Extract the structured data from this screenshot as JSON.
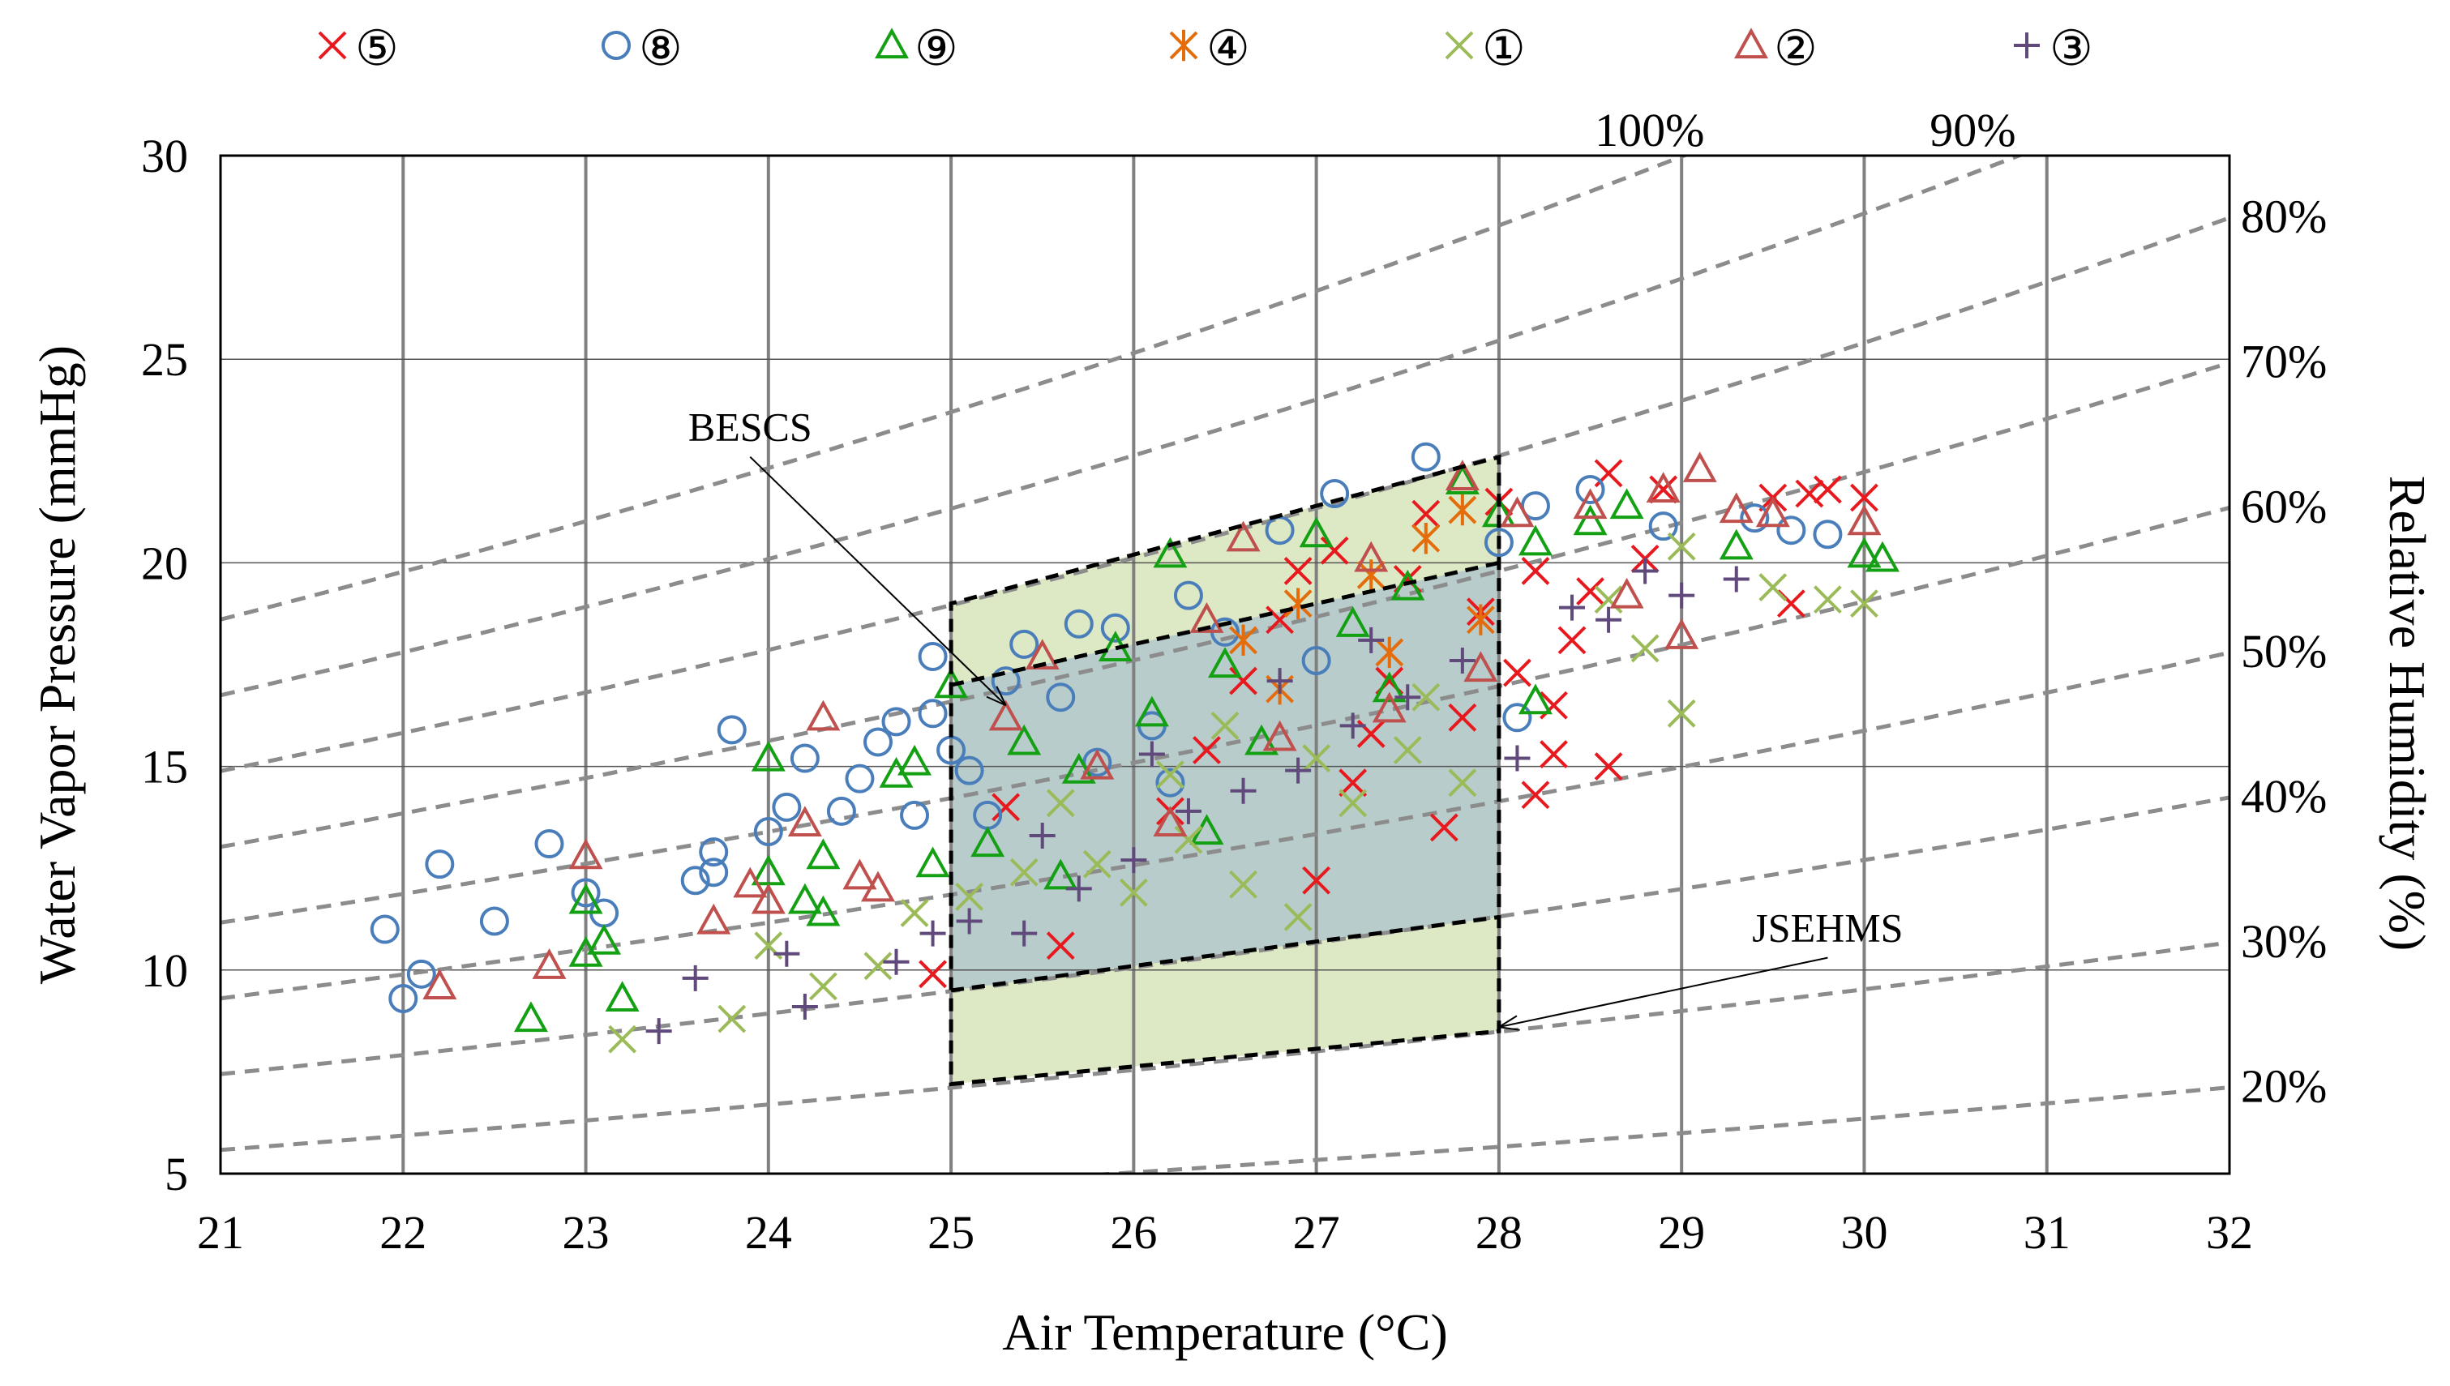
{
  "chart_data": {
    "type": "scatter",
    "xlabel": "Air Temperature (°C)",
    "ylabel": "Water Vapor Pressure (mmHg)",
    "y2label": "Relative Humidity (%)",
    "xlim": [
      21,
      32
    ],
    "ylim": [
      5,
      30
    ],
    "x_ticks": [
      "21",
      "22",
      "23",
      "24",
      "25",
      "26",
      "27",
      "28",
      "29",
      "30",
      "31",
      "32"
    ],
    "y_ticks": [
      "5",
      "10",
      "15",
      "20",
      "25",
      "30"
    ],
    "grid": "major vertical every 1 °C; horizontal lines at 10, 15, 20, 25",
    "legend_position": "top",
    "colors": {
      "axis": "#000000",
      "grid": "#808080",
      "rh_curve": "#8c8c8c",
      "zone_fill": "#dde8c4",
      "overlap_fill": "#b7cccb"
    },
    "rh_curves": [
      {
        "label": "20%",
        "rh": 20
      },
      {
        "label": "30%",
        "rh": 30
      },
      {
        "label": "40%",
        "rh": 40
      },
      {
        "label": "50%",
        "rh": 50
      },
      {
        "label": "60%",
        "rh": 60
      },
      {
        "label": "70%",
        "rh": 70
      },
      {
        "label": "80%",
        "rh": 80
      },
      {
        "label": "90%",
        "rh": 90
      },
      {
        "label": "100%",
        "rh": 100
      }
    ],
    "comfort_zones": [
      {
        "name": "BESCS",
        "corners": [
          [
            25,
            9.5
          ],
          [
            28,
            11.3
          ],
          [
            28,
            20.0
          ],
          [
            25,
            17.0
          ]
        ]
      },
      {
        "name": "JSEHMS",
        "corners": [
          [
            25,
            7.2
          ],
          [
            28,
            8.5
          ],
          [
            28,
            22.6
          ],
          [
            25,
            19.0
          ]
        ]
      }
    ],
    "annotations": [
      {
        "text": "BESCS",
        "x": 23.9,
        "y": 23.0,
        "arrow_to": [
          25.3,
          16.5
        ]
      },
      {
        "text": "JSEHMS",
        "x": 29.8,
        "y": 10.7,
        "arrow_to": [
          28.0,
          8.6
        ]
      }
    ],
    "series": [
      {
        "name": "⑤",
        "marker": "x",
        "color": "#e8191e",
        "points": [
          [
            24.9,
            9.9
          ],
          [
            25.3,
            14.0
          ],
          [
            25.6,
            10.6
          ],
          [
            26.4,
            15.4
          ],
          [
            26.8,
            18.6
          ],
          [
            26.9,
            19.8
          ],
          [
            27.0,
            12.2
          ],
          [
            27.1,
            20.3
          ],
          [
            27.2,
            14.6
          ],
          [
            27.4,
            17.1
          ],
          [
            27.5,
            19.6
          ],
          [
            27.6,
            21.2
          ],
          [
            27.7,
            13.5
          ],
          [
            27.8,
            16.2
          ],
          [
            27.9,
            18.8
          ],
          [
            28.0,
            21.5
          ],
          [
            28.1,
            17.3
          ],
          [
            28.2,
            14.3
          ],
          [
            28.2,
            19.8
          ],
          [
            28.3,
            15.3
          ],
          [
            28.4,
            18.1
          ],
          [
            28.5,
            19.3
          ],
          [
            28.6,
            22.2
          ],
          [
            28.6,
            15.0
          ],
          [
            28.8,
            20.1
          ],
          [
            28.9,
            21.8
          ],
          [
            29.5,
            21.6
          ],
          [
            29.6,
            19.0
          ],
          [
            29.7,
            21.7
          ],
          [
            29.8,
            21.8
          ],
          [
            30.0,
            21.6
          ],
          [
            28.3,
            16.5
          ],
          [
            27.3,
            15.8
          ],
          [
            26.6,
            17.1
          ],
          [
            26.2,
            13.9
          ]
        ]
      },
      {
        "name": "⑧",
        "marker": "circle",
        "color": "#4a7ebb",
        "points": [
          [
            21.9,
            11.0
          ],
          [
            22.0,
            9.3
          ],
          [
            22.1,
            9.9
          ],
          [
            22.2,
            12.6
          ],
          [
            22.5,
            11.2
          ],
          [
            22.8,
            13.1
          ],
          [
            23.0,
            11.9
          ],
          [
            23.1,
            11.4
          ],
          [
            23.6,
            12.2
          ],
          [
            23.7,
            12.9
          ],
          [
            23.7,
            12.4
          ],
          [
            23.8,
            15.9
          ],
          [
            24.0,
            13.4
          ],
          [
            24.1,
            14.0
          ],
          [
            24.2,
            15.2
          ],
          [
            24.4,
            13.9
          ],
          [
            24.5,
            14.7
          ],
          [
            24.6,
            15.6
          ],
          [
            24.7,
            16.1
          ],
          [
            24.8,
            13.8
          ],
          [
            24.9,
            16.3
          ],
          [
            24.9,
            17.7
          ],
          [
            25.0,
            15.4
          ],
          [
            25.1,
            14.9
          ],
          [
            25.3,
            17.1
          ],
          [
            25.4,
            18.0
          ],
          [
            25.6,
            16.7
          ],
          [
            25.7,
            18.5
          ],
          [
            25.9,
            18.4
          ],
          [
            26.1,
            16.0
          ],
          [
            26.3,
            19.2
          ],
          [
            26.5,
            18.3
          ],
          [
            26.8,
            20.8
          ],
          [
            27.1,
            21.7
          ],
          [
            27.6,
            22.6
          ],
          [
            28.0,
            20.5
          ],
          [
            28.2,
            21.4
          ],
          [
            28.5,
            21.8
          ],
          [
            28.9,
            20.9
          ],
          [
            29.4,
            21.1
          ],
          [
            29.6,
            20.8
          ],
          [
            29.8,
            20.7
          ],
          [
            28.1,
            16.2
          ],
          [
            25.2,
            13.8
          ],
          [
            25.8,
            15.1
          ],
          [
            26.2,
            14.6
          ],
          [
            27.0,
            17.6
          ]
        ]
      },
      {
        "name": "⑨",
        "marker": "triangle",
        "color": "#13a013",
        "points": [
          [
            22.7,
            8.8
          ],
          [
            23.0,
            10.4
          ],
          [
            23.0,
            11.7
          ],
          [
            23.1,
            10.7
          ],
          [
            23.2,
            9.3
          ],
          [
            24.0,
            12.4
          ],
          [
            24.0,
            15.2
          ],
          [
            24.2,
            11.7
          ],
          [
            24.3,
            11.4
          ],
          [
            24.3,
            12.8
          ],
          [
            24.7,
            14.8
          ],
          [
            24.8,
            15.1
          ],
          [
            24.9,
            12.6
          ],
          [
            25.0,
            17.0
          ],
          [
            25.2,
            13.1
          ],
          [
            25.4,
            15.6
          ],
          [
            25.7,
            14.9
          ],
          [
            25.9,
            17.9
          ],
          [
            26.1,
            16.3
          ],
          [
            26.2,
            20.2
          ],
          [
            26.5,
            17.5
          ],
          [
            27.0,
            20.7
          ],
          [
            27.2,
            18.5
          ],
          [
            27.5,
            19.4
          ],
          [
            27.8,
            22.0
          ],
          [
            28.0,
            21.2
          ],
          [
            28.2,
            20.5
          ],
          [
            28.2,
            16.6
          ],
          [
            28.5,
            21.0
          ],
          [
            28.7,
            21.4
          ],
          [
            29.3,
            20.4
          ],
          [
            30.0,
            20.2
          ],
          [
            30.1,
            20.1
          ],
          [
            26.7,
            15.6
          ],
          [
            25.6,
            12.3
          ],
          [
            26.4,
            13.4
          ],
          [
            27.4,
            16.9
          ]
        ]
      },
      {
        "name": "④",
        "marker": "asterisk",
        "color": "#e46c0a",
        "points": [
          [
            26.6,
            18.1
          ],
          [
            26.9,
            19.0
          ],
          [
            27.3,
            19.7
          ],
          [
            27.6,
            20.6
          ],
          [
            27.8,
            21.3
          ],
          [
            27.9,
            18.6
          ],
          [
            27.4,
            17.8
          ],
          [
            26.8,
            16.9
          ]
        ]
      },
      {
        "name": "①",
        "marker": "x",
        "color": "#9bbb59",
        "points": [
          [
            23.2,
            8.3
          ],
          [
            23.8,
            8.8
          ],
          [
            24.0,
            10.6
          ],
          [
            24.3,
            9.6
          ],
          [
            24.6,
            10.1
          ],
          [
            24.8,
            11.4
          ],
          [
            25.1,
            11.8
          ],
          [
            25.4,
            12.4
          ],
          [
            25.8,
            12.6
          ],
          [
            26.0,
            11.9
          ],
          [
            26.3,
            13.2
          ],
          [
            26.6,
            12.1
          ],
          [
            26.9,
            11.3
          ],
          [
            27.2,
            14.1
          ],
          [
            27.5,
            15.4
          ],
          [
            27.8,
            14.6
          ],
          [
            28.6,
            19.1
          ],
          [
            28.8,
            17.9
          ],
          [
            29.0,
            16.3
          ],
          [
            29.0,
            20.4
          ],
          [
            29.5,
            19.4
          ],
          [
            29.8,
            19.1
          ],
          [
            30.0,
            19.0
          ],
          [
            25.6,
            14.1
          ],
          [
            26.2,
            14.8
          ],
          [
            27.0,
            15.2
          ],
          [
            27.6,
            16.7
          ],
          [
            26.5,
            16.0
          ]
        ]
      },
      {
        "name": "②",
        "marker": "triangle",
        "color": "#c0504d",
        "points": [
          [
            22.2,
            9.6
          ],
          [
            22.8,
            10.1
          ],
          [
            23.0,
            12.8
          ],
          [
            23.7,
            11.2
          ],
          [
            23.9,
            12.1
          ],
          [
            24.0,
            11.7
          ],
          [
            24.2,
            13.6
          ],
          [
            24.3,
            16.2
          ],
          [
            24.5,
            12.3
          ],
          [
            24.6,
            12.0
          ],
          [
            25.3,
            16.2
          ],
          [
            25.5,
            17.7
          ],
          [
            26.4,
            18.6
          ],
          [
            26.6,
            20.6
          ],
          [
            27.3,
            20.1
          ],
          [
            27.8,
            22.1
          ],
          [
            28.1,
            21.2
          ],
          [
            28.5,
            21.4
          ],
          [
            28.7,
            19.2
          ],
          [
            28.9,
            21.8
          ],
          [
            29.0,
            18.2
          ],
          [
            29.1,
            22.3
          ],
          [
            29.3,
            21.3
          ],
          [
            29.5,
            21.2
          ],
          [
            30.0,
            21.0
          ],
          [
            25.8,
            15.0
          ],
          [
            26.2,
            13.6
          ],
          [
            26.8,
            15.7
          ],
          [
            27.4,
            16.4
          ],
          [
            27.9,
            17.4
          ]
        ]
      },
      {
        "name": "③",
        "marker": "plus",
        "color": "#604a7b",
        "points": [
          [
            23.4,
            8.5
          ],
          [
            23.6,
            9.8
          ],
          [
            24.1,
            10.4
          ],
          [
            24.2,
            9.1
          ],
          [
            24.7,
            10.2
          ],
          [
            24.9,
            10.9
          ],
          [
            25.1,
            11.2
          ],
          [
            25.4,
            10.9
          ],
          [
            25.7,
            12.0
          ],
          [
            26.0,
            12.7
          ],
          [
            26.3,
            13.9
          ],
          [
            26.6,
            14.4
          ],
          [
            26.9,
            14.9
          ],
          [
            27.2,
            16.0
          ],
          [
            27.5,
            16.7
          ],
          [
            27.8,
            17.6
          ],
          [
            28.1,
            15.2
          ],
          [
            28.4,
            18.9
          ],
          [
            28.6,
            18.6
          ],
          [
            28.8,
            19.8
          ],
          [
            29.0,
            19.2
          ],
          [
            29.3,
            19.6
          ],
          [
            25.5,
            13.3
          ],
          [
            26.1,
            15.3
          ],
          [
            26.8,
            17.1
          ],
          [
            27.3,
            18.1
          ]
        ]
      }
    ]
  }
}
